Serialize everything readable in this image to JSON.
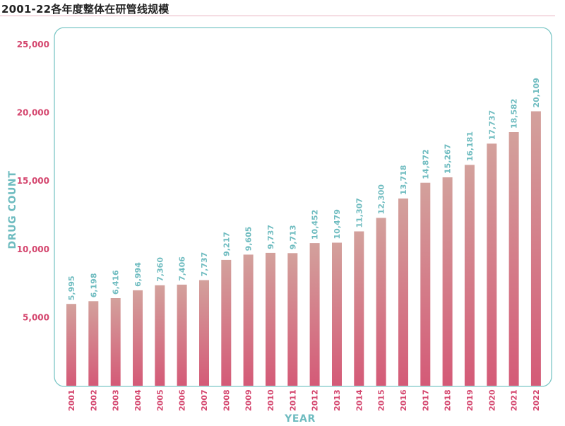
{
  "title": "2001-22各年度整体在研管线规模",
  "colors": {
    "bar_top": "#d3a19c",
    "bar_bottom": "#d45a77",
    "axis_text": "#d4466e",
    "label_text": "#6fbcc0",
    "frame": "#7cc7c6"
  },
  "chart_data": {
    "type": "bar",
    "categories": [
      "2001",
      "2002",
      "2003",
      "2004",
      "2005",
      "2006",
      "2007",
      "2008",
      "2009",
      "2010",
      "2011",
      "2012",
      "2013",
      "2014",
      "2015",
      "2016",
      "2017",
      "2018",
      "2019",
      "2020",
      "2021",
      "2022"
    ],
    "values": [
      5995,
      6198,
      6416,
      6994,
      7360,
      7406,
      7737,
      9217,
      9605,
      9737,
      9713,
      10452,
      10479,
      11307,
      12300,
      13718,
      14872,
      15267,
      16181,
      17737,
      18582,
      20109
    ],
    "data_labels": [
      "5,995",
      "6,198",
      "6,416",
      "6,994",
      "7,360",
      "7,406",
      "7,737",
      "9,217",
      "9,605",
      "9,737",
      "9,713",
      "10,452",
      "10,479",
      "11,307",
      "12,300",
      "13,718",
      "14,872",
      "15,267",
      "16,181",
      "17,737",
      "18,582",
      "20,109"
    ],
    "yticks": [
      5000,
      10000,
      15000,
      20000,
      25000
    ],
    "ytick_labels": [
      "5,000",
      "10,000",
      "15,000",
      "20,000",
      "25,000"
    ],
    "xlabel": "YEAR",
    "ylabel": "DRUG COUNT",
    "ylim": [
      0,
      25000
    ],
    "grid": false,
    "legend": "none"
  }
}
